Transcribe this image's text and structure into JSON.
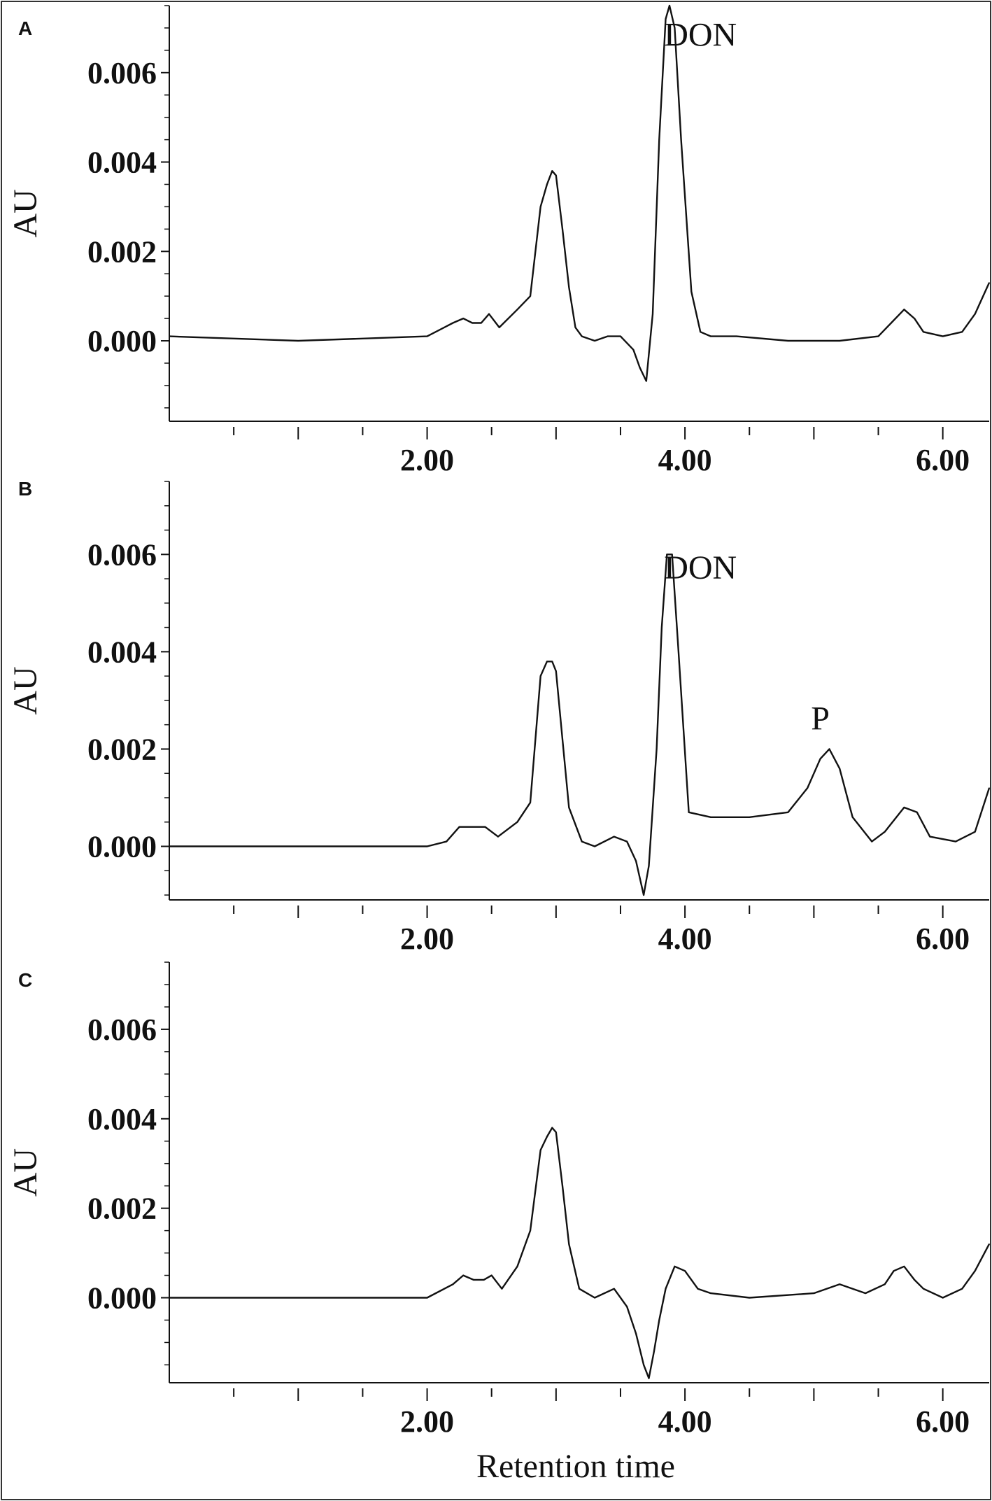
{
  "chart_data": [
    {
      "panel": "A",
      "type": "line",
      "ylabel": "AU",
      "xlabel": "",
      "xlim": [
        0.0,
        6.36
      ],
      "ylim": [
        -0.0018,
        0.0075
      ],
      "xticks": [
        "2.00",
        "4.00",
        "6.00"
      ],
      "yticks": [
        "0.000",
        "0.002",
        "0.004",
        "0.006"
      ],
      "annotations": [
        {
          "text": "DON",
          "x": 4.12,
          "y": 0.0066
        }
      ],
      "x": [
        0.0,
        1.0,
        2.0,
        2.2,
        2.28,
        2.35,
        2.42,
        2.48,
        2.56,
        2.7,
        2.8,
        2.88,
        2.93,
        2.97,
        3.0,
        3.05,
        3.1,
        3.15,
        3.2,
        3.3,
        3.4,
        3.5,
        3.6,
        3.65,
        3.7,
        3.75,
        3.8,
        3.85,
        3.88,
        3.92,
        3.97,
        4.05,
        4.12,
        4.2,
        4.4,
        4.8,
        5.2,
        5.5,
        5.6,
        5.7,
        5.78,
        5.85,
        6.0,
        6.15,
        6.25,
        6.36
      ],
      "values": [
        0.0001,
        0.0,
        0.0001,
        0.0004,
        0.0005,
        0.0004,
        0.0004,
        0.0006,
        0.0003,
        0.0007,
        0.001,
        0.003,
        0.0035,
        0.0038,
        0.0037,
        0.0025,
        0.0012,
        0.0003,
        0.0001,
        0.0,
        0.0001,
        0.0001,
        -0.0002,
        -0.0006,
        -0.0009,
        0.0006,
        0.0045,
        0.0072,
        0.0075,
        0.007,
        0.0045,
        0.0011,
        0.0002,
        0.0001,
        0.0001,
        0.0,
        0.0,
        0.0001,
        0.0004,
        0.0007,
        0.0005,
        0.0002,
        0.0001,
        0.0002,
        0.0006,
        0.0013
      ]
    },
    {
      "panel": "B",
      "type": "line",
      "ylabel": "AU",
      "xlabel": "",
      "xlim": [
        0.0,
        6.36
      ],
      "ylim": [
        -0.0011,
        0.0075
      ],
      "xticks": [
        "2.00",
        "4.00",
        "6.00"
      ],
      "yticks": [
        "0.000",
        "0.002",
        "0.004",
        "0.006"
      ],
      "annotations": [
        {
          "text": "DON",
          "x": 4.12,
          "y": 0.0055
        },
        {
          "text": "P",
          "x": 5.05,
          "y": 0.0024
        }
      ],
      "x": [
        0.0,
        1.0,
        2.0,
        2.15,
        2.25,
        2.35,
        2.45,
        2.55,
        2.7,
        2.8,
        2.88,
        2.93,
        2.97,
        3.0,
        3.05,
        3.1,
        3.2,
        3.3,
        3.45,
        3.55,
        3.62,
        3.68,
        3.72,
        3.78,
        3.82,
        3.86,
        3.9,
        3.95,
        4.03,
        4.2,
        4.5,
        4.8,
        4.95,
        5.05,
        5.12,
        5.2,
        5.3,
        5.45,
        5.55,
        5.7,
        5.8,
        5.9,
        6.1,
        6.25,
        6.36
      ],
      "values": [
        0.0,
        0.0,
        0.0,
        0.0001,
        0.0004,
        0.0004,
        0.0004,
        0.0002,
        0.0005,
        0.0009,
        0.0035,
        0.0038,
        0.0038,
        0.0036,
        0.0022,
        0.0008,
        0.0001,
        0.0,
        0.0002,
        0.0001,
        -0.0003,
        -0.001,
        -0.0004,
        0.002,
        0.0045,
        0.006,
        0.006,
        0.004,
        0.0007,
        0.0006,
        0.0006,
        0.0007,
        0.0012,
        0.0018,
        0.002,
        0.0016,
        0.0006,
        0.0001,
        0.0003,
        0.0008,
        0.0007,
        0.0002,
        0.0001,
        0.0003,
        0.0012
      ]
    },
    {
      "panel": "C",
      "type": "line",
      "ylabel": "AU",
      "xlabel": "Retention time",
      "xlim": [
        0.0,
        6.36
      ],
      "ylim": [
        -0.0019,
        0.0075
      ],
      "xticks": [
        "2.00",
        "4.00",
        "6.00"
      ],
      "yticks": [
        "0.000",
        "0.002",
        "0.004",
        "0.006"
      ],
      "annotations": [],
      "x": [
        0.0,
        1.0,
        2.0,
        2.2,
        2.28,
        2.36,
        2.44,
        2.5,
        2.58,
        2.7,
        2.8,
        2.88,
        2.93,
        2.97,
        3.0,
        3.05,
        3.1,
        3.18,
        3.3,
        3.45,
        3.55,
        3.62,
        3.68,
        3.72,
        3.76,
        3.8,
        3.85,
        3.92,
        4.0,
        4.1,
        4.2,
        4.5,
        5.0,
        5.2,
        5.4,
        5.55,
        5.62,
        5.7,
        5.78,
        5.85,
        6.0,
        6.15,
        6.25,
        6.36
      ],
      "values": [
        0.0,
        0.0,
        0.0,
        0.0003,
        0.0005,
        0.0004,
        0.0004,
        0.0005,
        0.0002,
        0.0007,
        0.0015,
        0.0033,
        0.0036,
        0.0038,
        0.0037,
        0.0025,
        0.0012,
        0.0002,
        0.0,
        0.0002,
        -0.0002,
        -0.0008,
        -0.0015,
        -0.0018,
        -0.0012,
        -0.0005,
        0.0002,
        0.0007,
        0.0006,
        0.0002,
        0.0001,
        0.0,
        0.0001,
        0.0003,
        0.0001,
        0.0003,
        0.0006,
        0.0007,
        0.0004,
        0.0002,
        0.0,
        0.0002,
        0.0006,
        0.0012
      ]
    }
  ]
}
